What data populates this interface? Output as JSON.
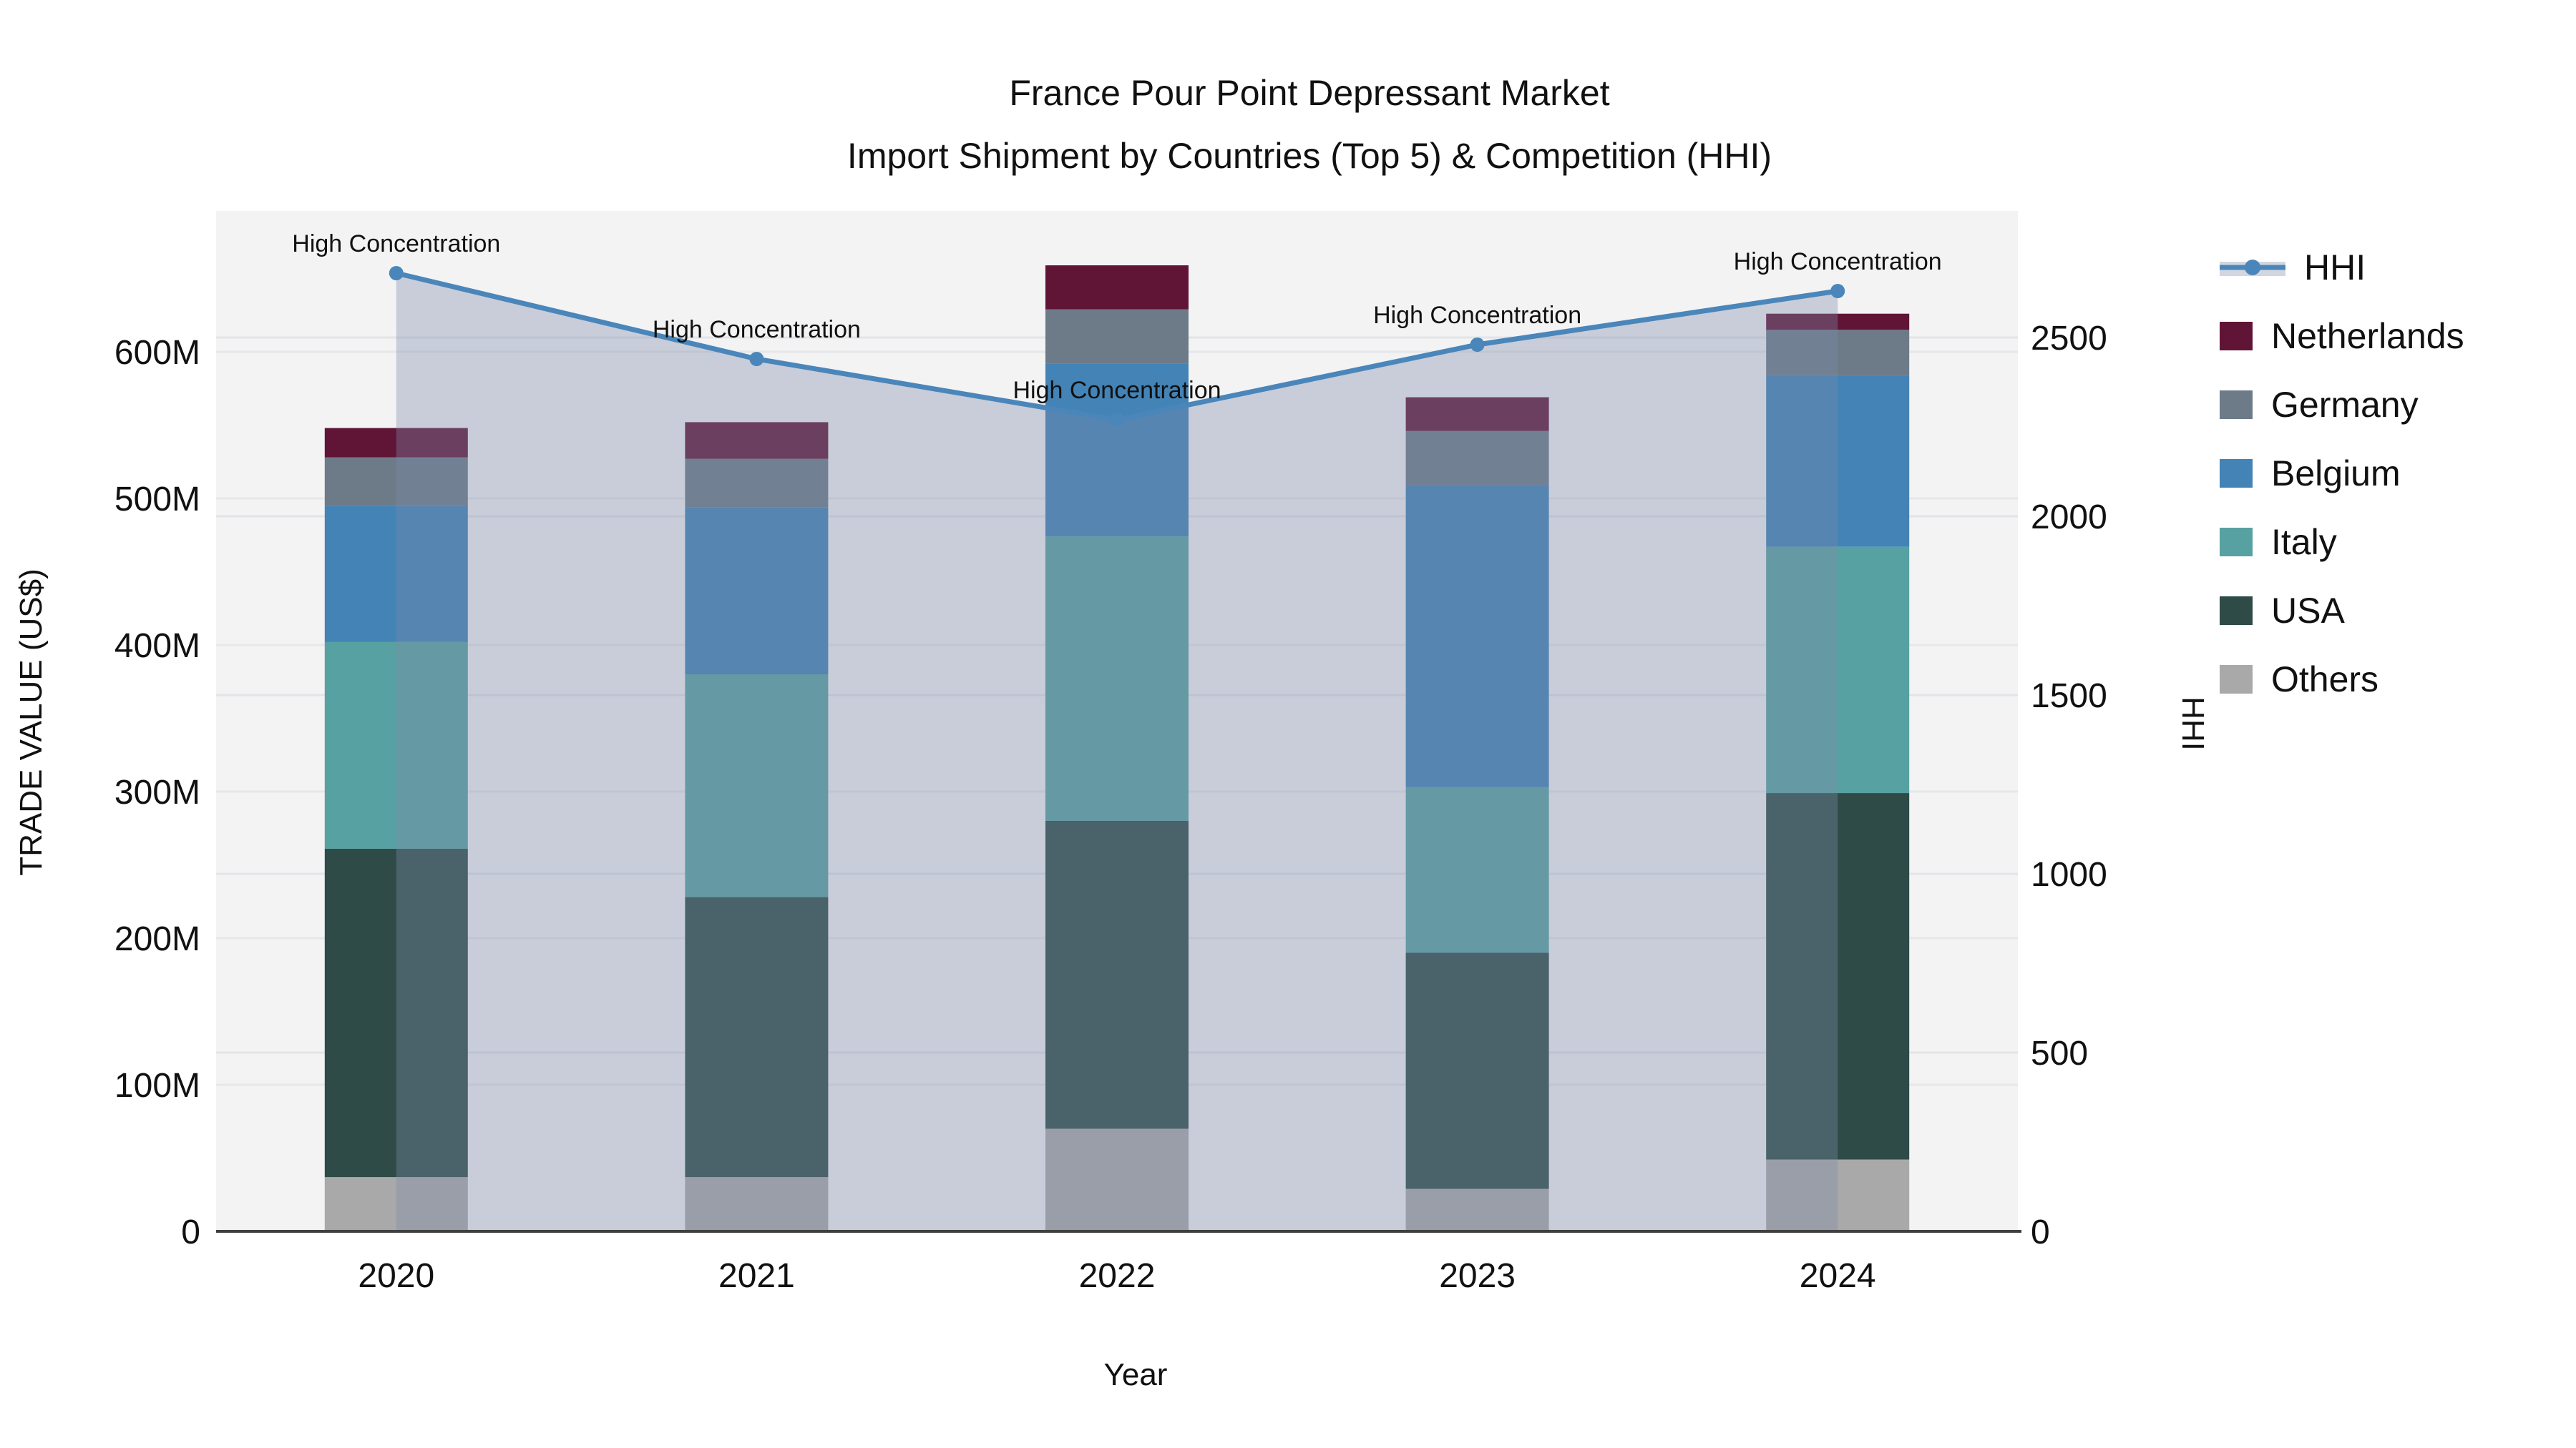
{
  "chart_data": {
    "type": "bar",
    "subtype": "stacked-bar-with-line-area",
    "title_line1": "France Pour Point Depressant Market",
    "title_line2": "Import Shipment by Countries (Top 5) & Competition (HHI)",
    "xlabel": "Year",
    "ylabel_left": "TRADE VALUE (US$)",
    "ylabel_right": "HHI",
    "categories": [
      "2020",
      "2021",
      "2022",
      "2023",
      "2024"
    ],
    "series": [
      {
        "name": "Others",
        "color": "#a9a9a9",
        "values_musd": [
          37,
          37,
          70,
          29,
          49
        ]
      },
      {
        "name": "USA",
        "color": "#2e4b47",
        "values_musd": [
          224,
          191,
          210,
          161,
          250
        ]
      },
      {
        "name": "Italy",
        "color": "#58a1a2",
        "values_musd": [
          141,
          152,
          194,
          113,
          168
        ]
      },
      {
        "name": "Belgium",
        "color": "#4383b6",
        "values_musd": [
          93,
          114,
          118,
          206,
          117
        ]
      },
      {
        "name": "Germany",
        "color": "#6d7b89",
        "values_musd": [
          33,
          33,
          37,
          37,
          31
        ]
      },
      {
        "name": "Netherlands",
        "color": "#611536",
        "values_musd": [
          20,
          25,
          30,
          23,
          11
        ]
      }
    ],
    "stack_totals_musd": [
      548,
      552,
      659,
      569,
      626
    ],
    "line_series": {
      "name": "HHI",
      "color": "#4a86ba",
      "area_fill": "rgba(125,139,168,0.36)",
      "legend_band_color": "#d1d6e0",
      "values": [
        2680,
        2440,
        2270,
        2480,
        2630
      ]
    },
    "annotations": [
      {
        "text": "High Concentration"
      },
      {
        "text": "High Concentration"
      },
      {
        "text": "High Concentration"
      },
      {
        "text": "High Concentration"
      },
      {
        "text": "High Concentration"
      }
    ],
    "left_axis": {
      "tick_labels": [
        "0",
        "100M",
        "200M",
        "300M",
        "400M",
        "500M",
        "600M"
      ],
      "tick_values_musd": [
        0,
        100,
        200,
        300,
        400,
        500,
        600
      ],
      "range_musd": [
        0,
        696
      ]
    },
    "right_axis": {
      "tick_labels": [
        "0",
        "500",
        "1000",
        "1500",
        "2000",
        "2500"
      ],
      "tick_values": [
        0,
        500,
        1000,
        1500,
        2000,
        2500
      ],
      "range": [
        0,
        2854
      ]
    },
    "legend_order": [
      "HHI",
      "Netherlands",
      "Germany",
      "Belgium",
      "Italy",
      "USA",
      "Others"
    ],
    "plot_background": "#f3f3f4",
    "grid_color_left": "#e6e7ea",
    "grid_color_right": "#e2e4e8",
    "axis_line_color": "#3f3f3f",
    "grid": true,
    "legend_position": "right"
  }
}
